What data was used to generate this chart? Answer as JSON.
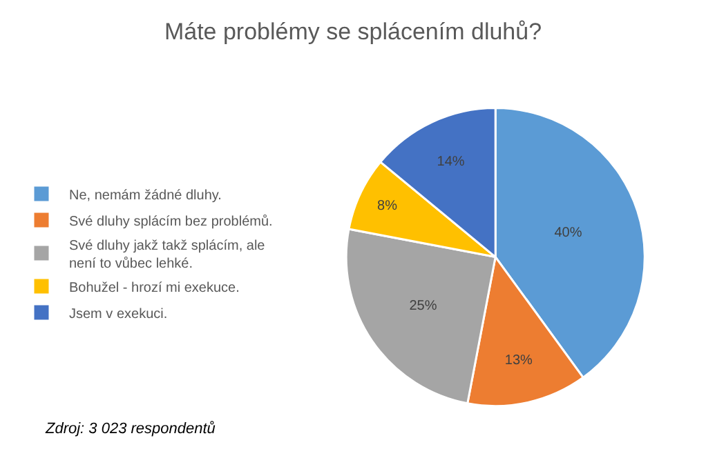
{
  "chart_data": {
    "type": "pie",
    "title": "Máte problémy se splácením dluhů?",
    "categories": [
      "Ne, nemám žádné dluhy.",
      "Své dluhy splácím bez problémů.",
      "Své dluhy jakž takž splácím, ale není to vůbec lehké.",
      "Bohužel - hrozí mi exekuce.",
      "Jsem v exekuci."
    ],
    "values": [
      40,
      13,
      25,
      8,
      14
    ],
    "value_labels": [
      "40%",
      "13%",
      "25%",
      "8%",
      "14%"
    ],
    "colors": [
      "#5b9bd5",
      "#ed7d31",
      "#a5a5a5",
      "#ffc000",
      "#4472c4"
    ],
    "legend": "left",
    "annotations": [
      "Zdroj: 3 023 respondentů"
    ]
  }
}
